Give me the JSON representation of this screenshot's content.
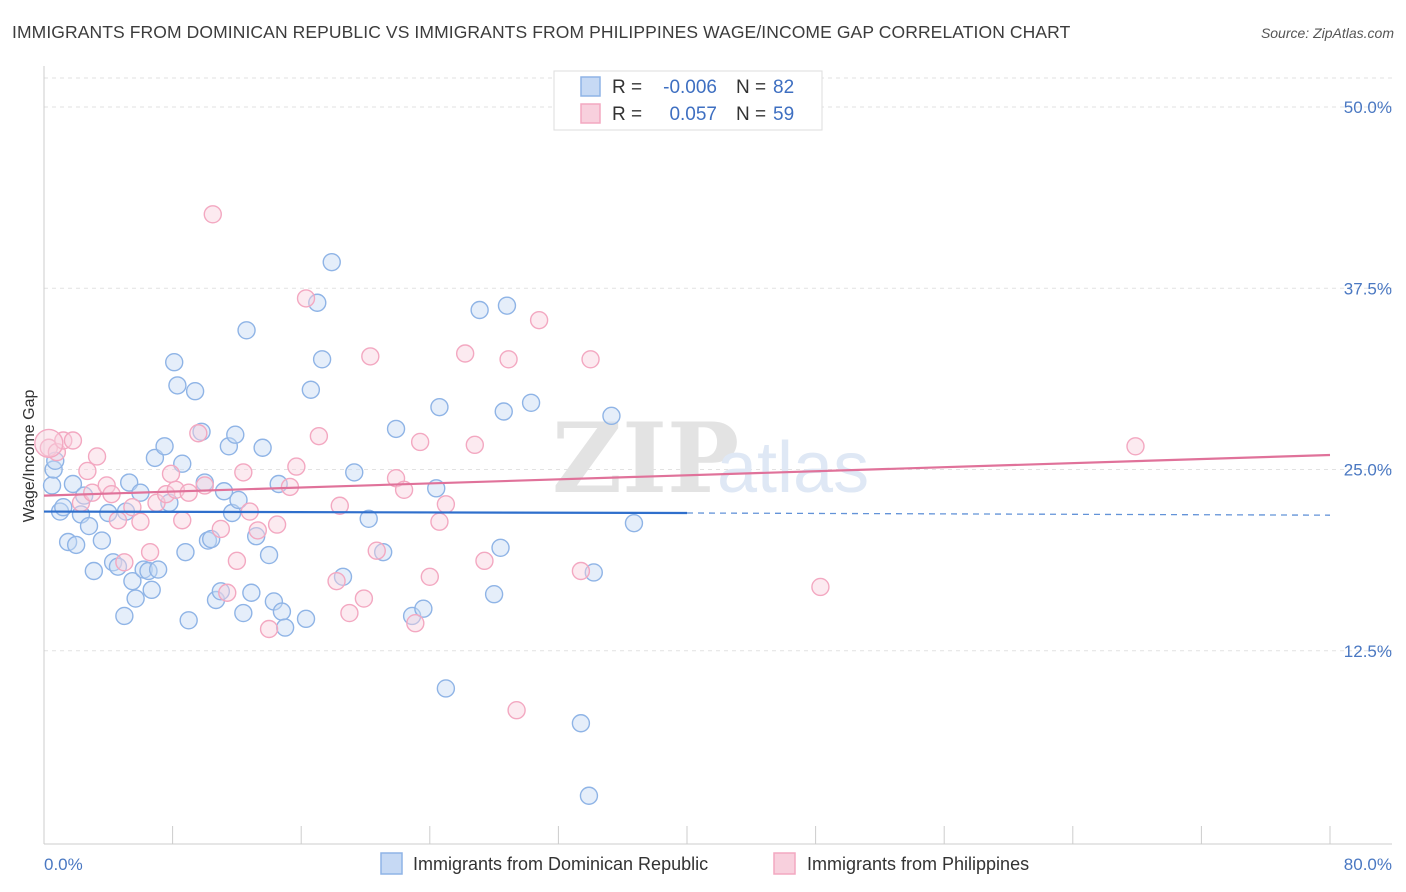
{
  "title": "IMMIGRANTS FROM DOMINICAN REPUBLIC VS IMMIGRANTS FROM PHILIPPINES WAGE/INCOME GAP CORRELATION CHART",
  "source": "Source: ZipAtlas.com",
  "watermark": {
    "zip": "ZIP",
    "atlas": "atlas"
  },
  "legend": {
    "r_label": "R =",
    "n_label": "N =",
    "rows": [
      {
        "r": "-0.006",
        "n": "82"
      },
      {
        "r": "0.057",
        "n": "59"
      }
    ]
  },
  "chart_data": {
    "type": "scatter",
    "title": "IMMIGRANTS FROM DOMINICAN REPUBLIC VS IMMIGRANTS FROM PHILIPPINES WAGE/INCOME GAP CORRELATION CHART",
    "xlabel": "",
    "ylabel": "Wage/Income Gap",
    "xlim": [
      0,
      80
    ],
    "ylim": [
      0,
      52
    ],
    "x_tick_labels": [
      "0.0%",
      "80.0%"
    ],
    "y_ticks": [
      12.5,
      25.0,
      37.5,
      50.0
    ],
    "y_tick_labels": [
      "12.5%",
      "25.0%",
      "37.5%",
      "50.0%"
    ],
    "grid": true,
    "legend_position": "top-center",
    "series": [
      {
        "name": "Immigrants from Dominican Republic",
        "color": "#8fb4e6",
        "line_color": "#2f6fcc",
        "R": -0.006,
        "N": 82,
        "trend": {
          "x0": 0,
          "y0": 22.1,
          "x1": 40,
          "y1": 22.0,
          "dashed_to_x": 80,
          "dashed_to_y": 21.85
        },
        "points": [
          [
            0.5,
            23.9
          ],
          [
            0.6,
            25.0
          ],
          [
            0.7,
            25.6
          ],
          [
            1.0,
            22.1
          ],
          [
            1.2,
            22.4
          ],
          [
            1.5,
            20.0
          ],
          [
            1.8,
            24.0
          ],
          [
            2.0,
            19.8
          ],
          [
            2.3,
            21.9
          ],
          [
            2.5,
            23.2
          ],
          [
            2.8,
            21.1
          ],
          [
            3.1,
            18.0
          ],
          [
            3.6,
            20.1
          ],
          [
            4.0,
            22.0
          ],
          [
            4.3,
            18.6
          ],
          [
            4.6,
            18.3
          ],
          [
            5.0,
            14.9
          ],
          [
            5.1,
            22.1
          ],
          [
            5.3,
            24.1
          ],
          [
            5.5,
            17.3
          ],
          [
            5.7,
            16.1
          ],
          [
            6.0,
            23.4
          ],
          [
            6.2,
            18.1
          ],
          [
            6.5,
            18.0
          ],
          [
            6.7,
            16.7
          ],
          [
            6.9,
            25.8
          ],
          [
            7.1,
            18.1
          ],
          [
            7.5,
            26.6
          ],
          [
            7.8,
            22.7
          ],
          [
            8.1,
            32.4
          ],
          [
            8.3,
            30.8
          ],
          [
            8.6,
            25.4
          ],
          [
            8.8,
            19.3
          ],
          [
            9.0,
            14.6
          ],
          [
            9.4,
            30.4
          ],
          [
            9.8,
            27.6
          ],
          [
            10.0,
            24.1
          ],
          [
            10.2,
            20.1
          ],
          [
            10.4,
            20.2
          ],
          [
            10.7,
            16.0
          ],
          [
            11.0,
            16.6
          ],
          [
            11.2,
            23.5
          ],
          [
            11.5,
            26.6
          ],
          [
            11.7,
            22.0
          ],
          [
            11.9,
            27.4
          ],
          [
            12.1,
            22.9
          ],
          [
            12.4,
            15.1
          ],
          [
            12.6,
            34.6
          ],
          [
            12.9,
            16.5
          ],
          [
            13.2,
            20.4
          ],
          [
            13.6,
            26.5
          ],
          [
            14.0,
            19.1
          ],
          [
            14.3,
            15.9
          ],
          [
            14.6,
            24.0
          ],
          [
            14.8,
            15.2
          ],
          [
            15.0,
            14.1
          ],
          [
            16.3,
            14.7
          ],
          [
            16.6,
            30.5
          ],
          [
            17.0,
            36.5
          ],
          [
            17.3,
            32.6
          ],
          [
            17.9,
            39.3
          ],
          [
            18.6,
            17.6
          ],
          [
            19.3,
            24.8
          ],
          [
            20.2,
            21.6
          ],
          [
            21.1,
            19.3
          ],
          [
            21.9,
            27.8
          ],
          [
            22.9,
            14.9
          ],
          [
            23.6,
            15.4
          ],
          [
            24.4,
            23.7
          ],
          [
            24.6,
            29.3
          ],
          [
            25.0,
            9.9
          ],
          [
            27.1,
            36.0
          ],
          [
            28.0,
            16.4
          ],
          [
            28.4,
            19.6
          ],
          [
            28.6,
            29.0
          ],
          [
            28.8,
            36.3
          ],
          [
            30.3,
            29.6
          ],
          [
            33.4,
            7.5
          ],
          [
            33.9,
            2.5
          ],
          [
            34.2,
            17.9
          ],
          [
            35.3,
            28.7
          ],
          [
            36.7,
            21.3
          ]
        ]
      },
      {
        "name": "Immigrants from Philippines",
        "color": "#f3a8c1",
        "line_color": "#e0729a",
        "R": 0.057,
        "N": 59,
        "trend": {
          "x0": 0,
          "y0": 23.2,
          "x1": 80,
          "y1": 26.0
        },
        "points": [
          [
            0.3,
            26.5
          ],
          [
            0.8,
            26.2
          ],
          [
            1.2,
            27.0
          ],
          [
            1.8,
            27.0
          ],
          [
            2.3,
            22.7
          ],
          [
            2.7,
            24.9
          ],
          [
            3.0,
            23.4
          ],
          [
            3.3,
            25.9
          ],
          [
            3.9,
            23.9
          ],
          [
            4.2,
            23.3
          ],
          [
            4.6,
            21.5
          ],
          [
            5.0,
            18.6
          ],
          [
            5.5,
            22.4
          ],
          [
            6.0,
            21.4
          ],
          [
            6.6,
            19.3
          ],
          [
            7.0,
            22.7
          ],
          [
            7.6,
            23.3
          ],
          [
            7.9,
            24.7
          ],
          [
            8.2,
            23.6
          ],
          [
            8.6,
            21.5
          ],
          [
            9.0,
            23.4
          ],
          [
            9.6,
            27.5
          ],
          [
            10.0,
            23.9
          ],
          [
            10.5,
            42.6
          ],
          [
            11.0,
            20.9
          ],
          [
            11.4,
            16.5
          ],
          [
            12.0,
            18.7
          ],
          [
            12.4,
            24.8
          ],
          [
            12.8,
            22.1
          ],
          [
            13.3,
            20.8
          ],
          [
            14.0,
            14.0
          ],
          [
            14.5,
            21.2
          ],
          [
            15.3,
            23.8
          ],
          [
            15.7,
            25.2
          ],
          [
            16.3,
            36.8
          ],
          [
            17.1,
            27.3
          ],
          [
            18.2,
            17.3
          ],
          [
            18.4,
            22.5
          ],
          [
            19.0,
            15.1
          ],
          [
            19.9,
            16.1
          ],
          [
            20.3,
            32.8
          ],
          [
            20.7,
            19.4
          ],
          [
            21.9,
            24.4
          ],
          [
            22.4,
            23.6
          ],
          [
            23.1,
            14.4
          ],
          [
            23.4,
            26.9
          ],
          [
            24.0,
            17.6
          ],
          [
            24.6,
            21.4
          ],
          [
            25.0,
            22.6
          ],
          [
            26.2,
            33.0
          ],
          [
            26.8,
            26.7
          ],
          [
            27.4,
            18.7
          ],
          [
            28.9,
            32.6
          ],
          [
            29.4,
            8.4
          ],
          [
            30.8,
            35.3
          ],
          [
            33.4,
            18.0
          ],
          [
            34.0,
            32.6
          ],
          [
            48.3,
            16.9
          ],
          [
            67.9,
            26.6
          ]
        ]
      }
    ]
  }
}
